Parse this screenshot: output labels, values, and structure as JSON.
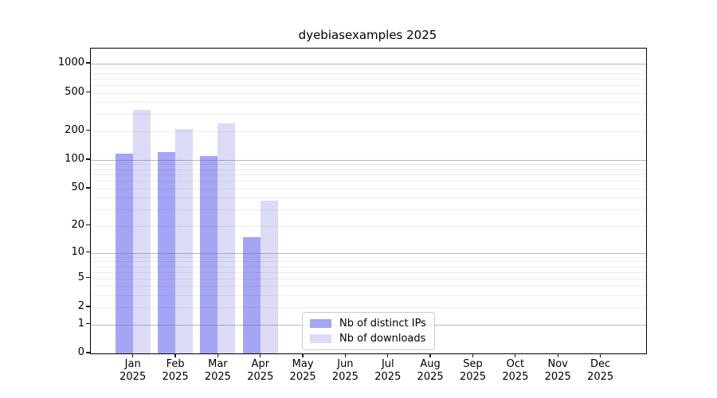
{
  "title": "dyebiasexamples 2025",
  "chart_data": {
    "type": "bar",
    "scale": "log1p",
    "title": "dyebiasexamples 2025",
    "categories": [
      "Jan",
      "Feb",
      "Mar",
      "Apr",
      "May",
      "Jun",
      "Jul",
      "Aug",
      "Sep",
      "Oct",
      "Nov",
      "Dec"
    ],
    "x_tick_year": "2025",
    "series": [
      {
        "name": "Nb of distinct IPs",
        "color": "#a5a5f5",
        "values": [
          117,
          122,
          109,
          15,
          0,
          0,
          0,
          0,
          0,
          0,
          0,
          0
        ]
      },
      {
        "name": "Nb of downloads",
        "color": "#dbdbf8",
        "values": [
          332,
          211,
          239,
          37,
          0,
          0,
          0,
          0,
          0,
          0,
          0,
          0
        ]
      }
    ],
    "y_ticks": [
      1000,
      500,
      200,
      100,
      50,
      20,
      10,
      5,
      2,
      1,
      0
    ],
    "y_major_gridlines": [
      1,
      10,
      100,
      1000
    ],
    "y_minor_gridline_decades": [
      1,
      10,
      100
    ],
    "ylim": [
      0,
      1400
    ],
    "grid": "both",
    "legend_position": "lower center inside",
    "xlabel": "",
    "ylabel": ""
  },
  "colors": {
    "background": "#ffffff",
    "spine": "#000000",
    "major_grid": "#b0b0b0",
    "minor_grid": "#ebebeb",
    "tick": "#1a1a1a"
  }
}
